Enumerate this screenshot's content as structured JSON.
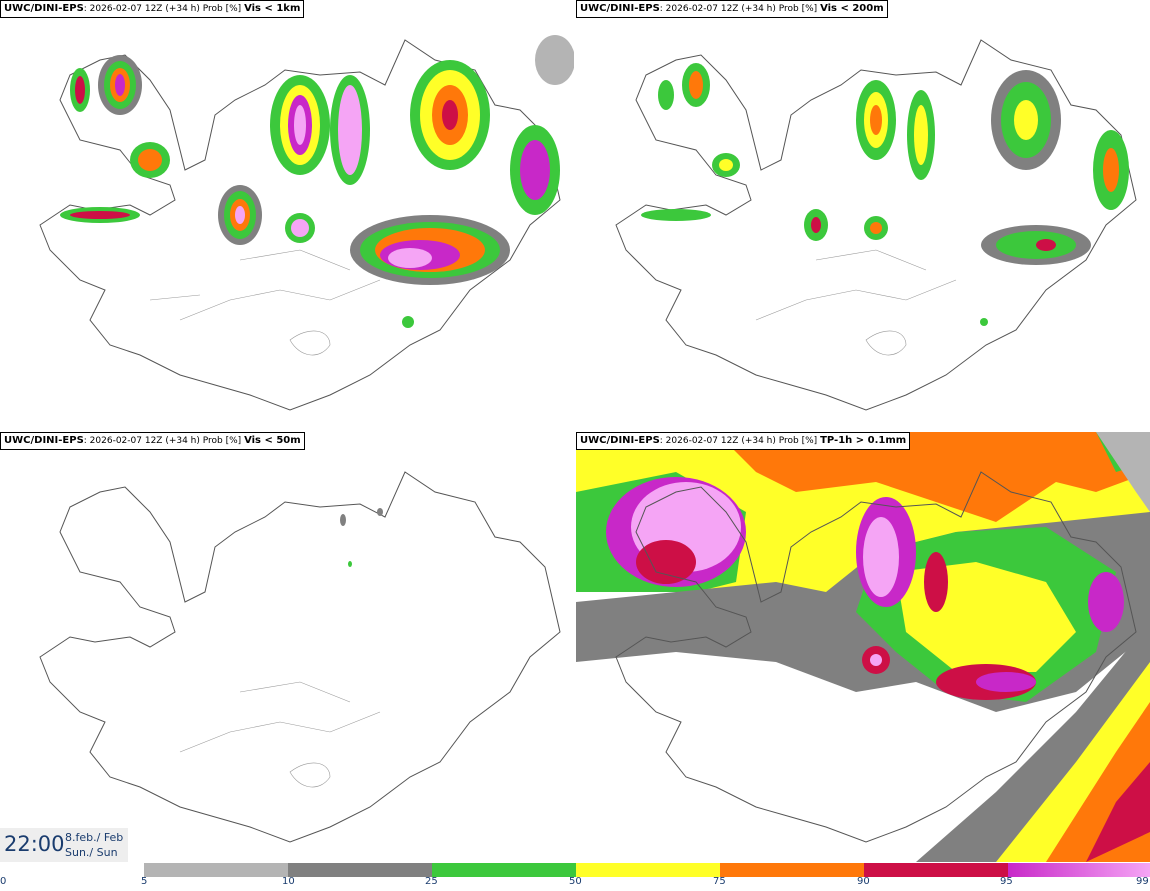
{
  "panels": [
    {
      "source": "UWC/DINI-EPS",
      "meta": "2026-02-07 12Z (+34 h) Prob [%]",
      "variable": "Vis < 1km"
    },
    {
      "source": "UWC/DINI-EPS",
      "meta": "2026-02-07 12Z (+34 h) Prob [%]",
      "variable": "Vis < 200m"
    },
    {
      "source": "UWC/DINI-EPS",
      "meta": "2026-02-07 12Z (+34 h) Prob [%]",
      "variable": "Vis < 50m"
    },
    {
      "source": "UWC/DINI-EPS",
      "meta": "2026-02-07 12Z (+34 h) Prob [%]",
      "variable": "TP-1h > 0.1mm"
    }
  ],
  "valid_time": {
    "time": "22:00",
    "date": "8.feb./ Feb",
    "day": "Sun./ Sun"
  },
  "legend": {
    "ticks": [
      "0",
      "5",
      "10",
      "25",
      "50",
      "75",
      "90",
      "95",
      "99"
    ],
    "colors": [
      "#b4b4b4",
      "#808080",
      "#3cc83c",
      "#ffff28",
      "#ff780a",
      "#cd0f46",
      "#c828c8",
      "#f5a5f5"
    ]
  }
}
